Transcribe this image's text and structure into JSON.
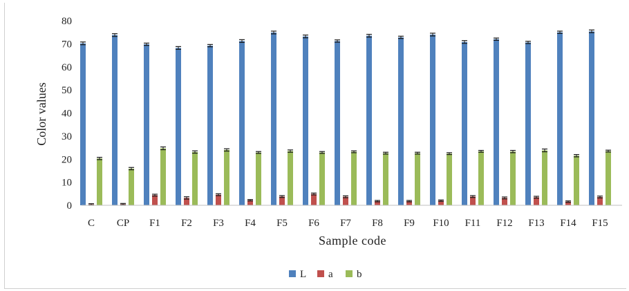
{
  "chart_data": {
    "type": "bar",
    "xlabel": "Sample code",
    "ylabel": "Color values",
    "ylim": [
      0,
      80
    ],
    "yticks": [
      0,
      10,
      20,
      30,
      40,
      50,
      60,
      70,
      80
    ],
    "grid": false,
    "legend_position": "bottom",
    "error_bars": true,
    "categories": [
      "C",
      "CP",
      "F1",
      "F2",
      "F3",
      "F4",
      "F5",
      "F6",
      "F7",
      "F8",
      "F9",
      "F10",
      "F11",
      "F12",
      "F13",
      "F14",
      "F15"
    ],
    "series": [
      {
        "name": "L",
        "color": "#4f81bd",
        "values": [
          70.2,
          73.8,
          69.8,
          68.2,
          69.2,
          71.2,
          74.9,
          73.2,
          71.2,
          73.5,
          72.8,
          74.0,
          70.8,
          72.0,
          70.6,
          75.0,
          75.4
        ],
        "errors": [
          0.6,
          0.6,
          0.5,
          0.6,
          0.5,
          0.6,
          0.6,
          0.6,
          0.5,
          0.6,
          0.5,
          0.6,
          0.6,
          0.5,
          0.5,
          0.5,
          0.6
        ]
      },
      {
        "name": "a",
        "color": "#c0504d",
        "values": [
          0.4,
          0.5,
          4.4,
          3.2,
          4.6,
          2.2,
          3.8,
          4.9,
          3.7,
          1.8,
          1.8,
          2.0,
          3.8,
          3.2,
          3.5,
          1.6,
          3.6
        ],
        "errors": [
          0.3,
          0.3,
          0.4,
          0.5,
          0.4,
          0.3,
          0.4,
          0.4,
          0.4,
          0.3,
          0.3,
          0.3,
          0.4,
          0.4,
          0.4,
          0.3,
          0.4
        ]
      },
      {
        "name": "b",
        "color": "#9bbb59",
        "values": [
          20.3,
          15.9,
          24.7,
          23.1,
          24.0,
          22.9,
          23.5,
          22.9,
          23.2,
          22.6,
          22.6,
          22.4,
          23.4,
          23.3,
          23.8,
          21.5,
          23.5
        ],
        "errors": [
          0.5,
          0.5,
          0.6,
          0.5,
          0.5,
          0.4,
          0.5,
          0.4,
          0.4,
          0.4,
          0.4,
          0.4,
          0.4,
          0.5,
          0.6,
          0.5,
          0.4
        ]
      }
    ]
  }
}
